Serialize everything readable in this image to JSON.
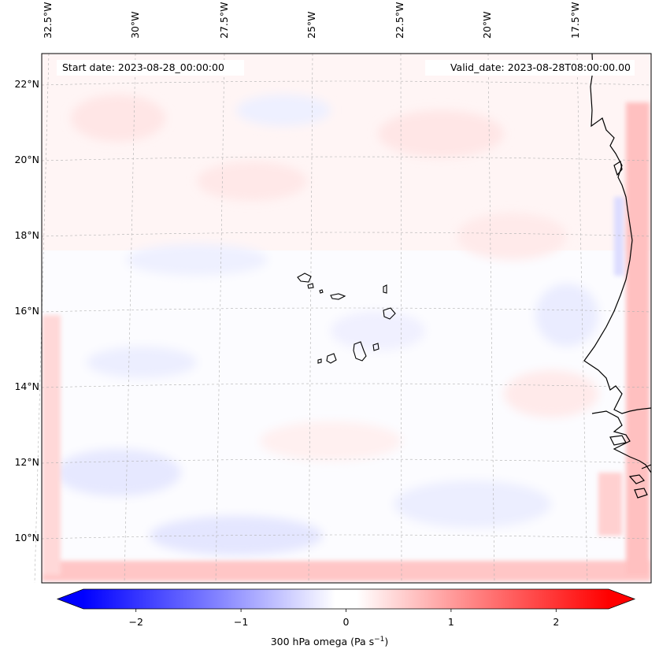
{
  "map": {
    "start_date": "Start date: 2023-08-28_00:00:00",
    "valid_date": "Valid_date: 2023-08-28T08:00:00.00",
    "lon_labels": [
      "32.5°W",
      "30°W",
      "27.5°W",
      "25°W",
      "22.5°W",
      "20°W",
      "17.5°W"
    ],
    "lat_labels": [
      "22°N",
      "20°N",
      "18°N",
      "16°N",
      "14°N",
      "12°N",
      "10°N"
    ],
    "field_colors": {
      "strong_neg": "#0000ff",
      "weak_neg": "#eef0ff",
      "neutral": "#fcfcff",
      "weak_pos": "#ffecec",
      "strong_pos": "#ff0000",
      "coast": "#000000",
      "grid": "#b0b0b0"
    }
  },
  "colorbar": {
    "ticks": [
      "−2",
      "−1",
      "0",
      "1",
      "2"
    ],
    "tick_values": [
      -2,
      -1,
      0,
      1,
      2
    ],
    "range": [
      -2.5,
      2.5
    ],
    "label_main": "300 hPa omega (Pa s",
    "label_exp": "−1",
    "label_close": ")"
  }
}
